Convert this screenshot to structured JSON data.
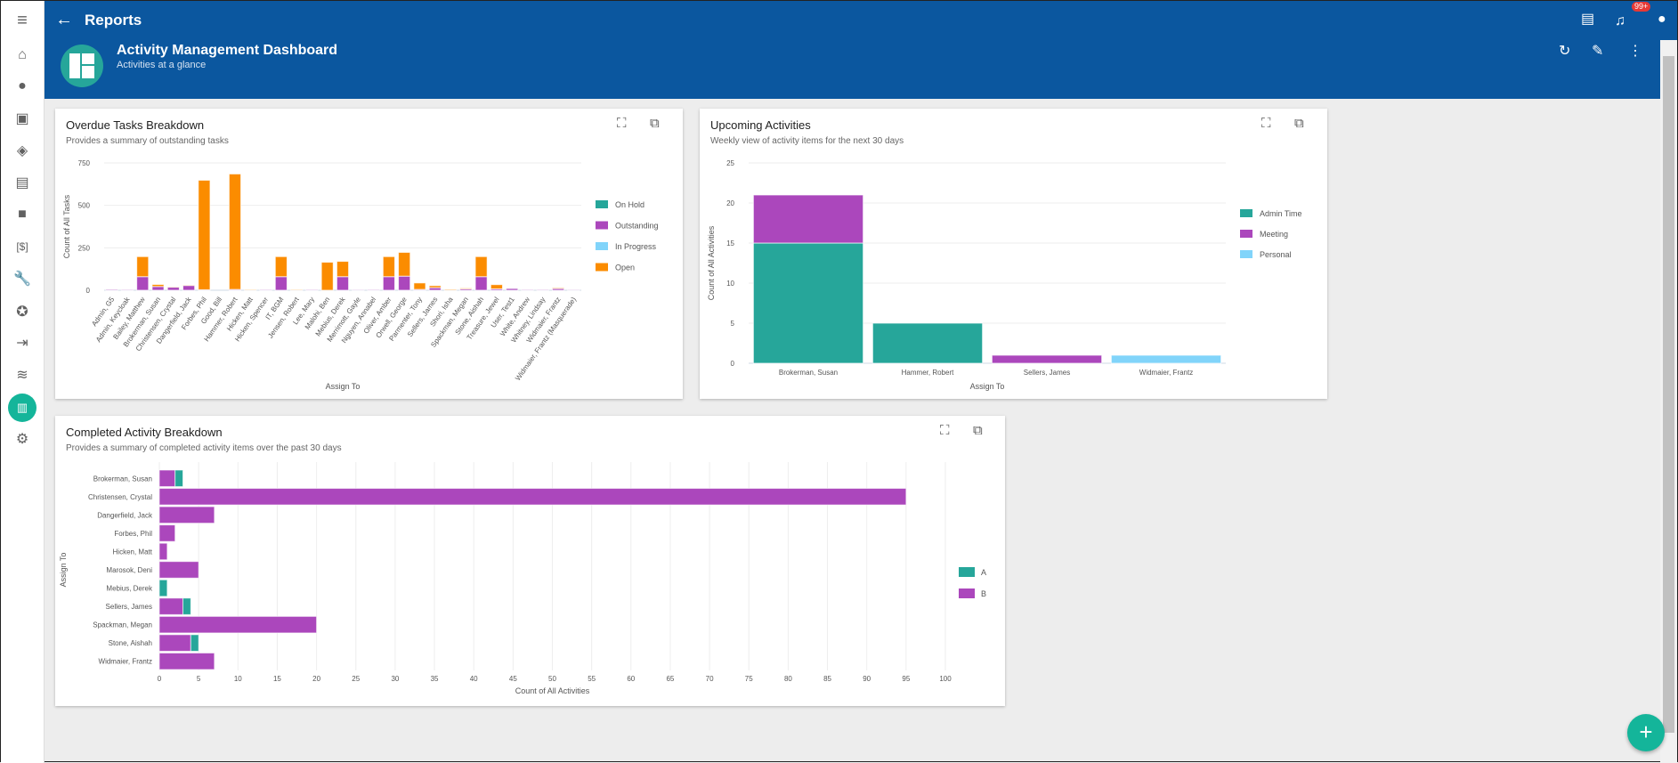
{
  "header": {
    "back_label": "←",
    "title": "Reports",
    "dashboard_title": "Activity Management Dashboard",
    "dashboard_subtitle": "Activities at a glance",
    "notification_count": "99+"
  },
  "colors": {
    "header": "#0b579f",
    "teal": "#26a69a",
    "purple": "#ab47bc",
    "light_blue": "#81d4fa",
    "orange": "#fb8c00"
  },
  "sidebar": {
    "items": [
      "menu",
      "home",
      "contacts",
      "calendar",
      "deals",
      "tasks",
      "documents",
      "billing",
      "tools",
      "favorites",
      "import",
      "layers",
      "reports",
      "settings"
    ]
  },
  "cards": [
    {
      "title": "Overdue Tasks Breakdown",
      "subtitle": "Provides a summary of outstanding tasks"
    },
    {
      "title": "Upcoming Activities",
      "subtitle": "Weekly view of activity items for the next 30 days"
    },
    {
      "title": "Completed Activity Breakdown",
      "subtitle": "Provides a summary of completed activity items over the past 30 days"
    }
  ],
  "chart_data": [
    {
      "type": "bar",
      "stacked": true,
      "title": "Overdue Tasks Breakdown",
      "xlabel": "Assign To",
      "ylabel": "Count of All Tasks",
      "ylim": [
        0,
        750
      ],
      "yticks": [
        0,
        250,
        500,
        750
      ],
      "categories": [
        "Admin, G5",
        "Admin, Keycloak",
        "Bailey, Matthew",
        "Brokerman, Susan",
        "Christensen, Crystal",
        "Dangerfield, Jack",
        "Forbes, Phil",
        "Good, Bill",
        "Hammer, Robert",
        "Hicken, Matt",
        "Hicken, Spencer",
        "IT, BGM",
        "Jensen, Robert",
        "Lee, Mary",
        "Malohi, Ben",
        "Mebius, Derek",
        "Merrimott, Gayle",
        "Nguyen, Annabel",
        "Oliver, Amber",
        "Orwell, George",
        "Parmenter, Tony",
        "Sellers, James",
        "Shori, Isha",
        "Spackman, Megan",
        "Stone, Aishah",
        "Treasure, Jewel",
        "User, Test1",
        "White, Andrew",
        "Whitney, Lindsay",
        "Widmaier, Frantz",
        "Widmaier, Frantz (Masquerade)"
      ],
      "series": [
        {
          "name": "On Hold",
          "color": "#26a69a",
          "values": [
            0,
            0,
            0,
            0,
            0,
            0,
            0,
            0,
            0,
            0,
            0,
            0,
            0,
            0,
            0,
            0,
            0,
            0,
            0,
            0,
            0,
            0,
            0,
            0,
            0,
            0,
            0,
            0,
            0,
            0,
            0
          ]
        },
        {
          "name": "Outstanding",
          "color": "#ab47bc",
          "values": [
            5,
            3,
            80,
            22,
            18,
            28,
            3,
            0,
            5,
            0,
            3,
            80,
            0,
            3,
            0,
            80,
            2,
            3,
            80,
            83,
            5,
            15,
            0,
            8,
            80,
            8,
            10,
            3,
            3,
            10,
            2
          ]
        },
        {
          "name": "In Progress",
          "color": "#81d4fa",
          "values": [
            0,
            0,
            0,
            0,
            0,
            0,
            0,
            0,
            0,
            0,
            0,
            0,
            0,
            0,
            0,
            0,
            0,
            0,
            0,
            0,
            0,
            0,
            0,
            0,
            0,
            0,
            0,
            0,
            0,
            0,
            0
          ]
        },
        {
          "name": "Open",
          "color": "#fb8c00",
          "values": [
            0,
            0,
            118,
            12,
            2,
            2,
            645,
            0,
            680,
            3,
            0,
            118,
            3,
            0,
            165,
            90,
            0,
            0,
            118,
            140,
            38,
            12,
            5,
            5,
            118,
            25,
            0,
            0,
            0,
            5,
            0
          ]
        }
      ],
      "legend": "right"
    },
    {
      "type": "bar",
      "stacked": true,
      "title": "Upcoming Activities",
      "xlabel": "Assign To",
      "ylabel": "Count of All Activities",
      "ylim": [
        0,
        25
      ],
      "yticks": [
        0,
        5,
        10,
        15,
        20,
        25
      ],
      "categories": [
        "Brokerman, Susan",
        "Hammer, Robert",
        "Sellers, James",
        "Widmaier, Frantz"
      ],
      "series": [
        {
          "name": "Admin Time",
          "color": "#26a69a",
          "values": [
            15,
            5,
            0,
            0
          ]
        },
        {
          "name": "Meeting",
          "color": "#ab47bc",
          "values": [
            6,
            0,
            1,
            0
          ]
        },
        {
          "name": "Personal",
          "color": "#81d4fa",
          "values": [
            0,
            0,
            0,
            1
          ]
        }
      ],
      "legend": "right"
    },
    {
      "type": "bar",
      "orientation": "horizontal",
      "stacked": true,
      "title": "Completed Activity Breakdown",
      "xlabel": "Count of All Activities",
      "ylabel": "Assign To",
      "xlim": [
        0,
        100
      ],
      "xticks": [
        0,
        5,
        10,
        15,
        20,
        25,
        30,
        35,
        40,
        45,
        50,
        55,
        60,
        65,
        70,
        75,
        80,
        85,
        90,
        95,
        100
      ],
      "categories": [
        "Brokerman, Susan",
        "Christensen, Crystal",
        "Dangerfield, Jack",
        "Forbes, Phil",
        "Hicken, Matt",
        "Marosok, Deni",
        "Mebius, Derek",
        "Sellers, James",
        "Spackman, Megan",
        "Stone, Aishah",
        "Widmaier, Frantz"
      ],
      "series": [
        {
          "name": "A",
          "color": "#26a69a",
          "values": [
            1,
            0,
            0,
            0,
            0,
            0,
            1,
            1,
            0,
            1,
            0
          ]
        },
        {
          "name": "B",
          "color": "#ab47bc",
          "values": [
            2,
            95,
            7,
            2,
            1,
            5,
            0,
            3,
            20,
            4,
            7
          ]
        }
      ],
      "legend": "right"
    }
  ]
}
